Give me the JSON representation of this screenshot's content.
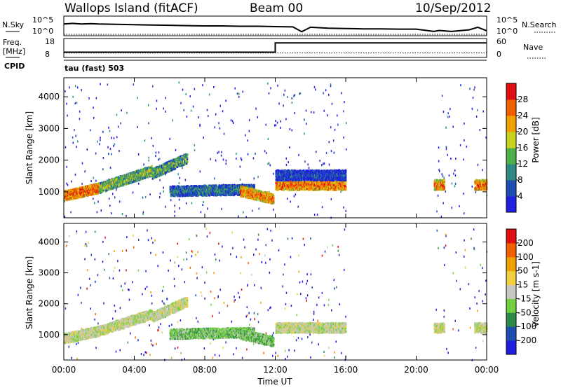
{
  "header": {
    "station": "Wallops Island (fitACF)",
    "beam": "Beam 00",
    "date": "10/Sep/2012"
  },
  "chart_data": [
    {
      "type": "line",
      "panel": "noise",
      "left_label": "N.Sky",
      "left_ticks": [
        "10^5",
        "10^0"
      ],
      "right_label": "N.Search",
      "right_ticks": [
        "10^5",
        "10^0"
      ],
      "scale": "log",
      "x": [
        0,
        0.5,
        1,
        1.5,
        2,
        3,
        4,
        5,
        6,
        7,
        8,
        9,
        10,
        11,
        12,
        13,
        13.5,
        14,
        15,
        16,
        17,
        18,
        19,
        20,
        21,
        21.3,
        22,
        23,
        23.5,
        24
      ],
      "series": [
        {
          "values": [
            3.2,
            3.4,
            3.2,
            3.3,
            3.2,
            3.1,
            3.0,
            2.9,
            2.8,
            2.7,
            2.6,
            2.6,
            2.5,
            2.5,
            2.4,
            2.3,
            0.8,
            2.2,
            1.9,
            1.8,
            1.7,
            1.7,
            1.6,
            1.6,
            0.9,
            1.2,
            0.9,
            1.4,
            2.2,
            1.1
          ]
        },
        {
          "values": [
            0,
            0,
            0,
            0,
            0,
            0,
            0,
            0,
            0,
            0,
            0,
            0,
            0,
            0,
            0,
            0,
            0,
            0,
            0,
            0,
            0,
            0,
            0,
            0,
            0,
            0,
            0,
            0,
            0,
            0
          ]
        }
      ]
    },
    {
      "type": "line",
      "panel": "frequency",
      "left_label": "Freq.",
      "left_unit": "[MHz]",
      "left_ticks": [
        "18",
        "8"
      ],
      "right_label": "Nave",
      "right_ticks": [
        "60",
        "0"
      ],
      "x": [
        0,
        12,
        12,
        24
      ],
      "series": [
        {
          "values": [
            10.5,
            10.5,
            16.5,
            16.5
          ]
        },
        {
          "values": [
            10,
            10,
            10,
            10
          ]
        }
      ]
    },
    {
      "type": "label",
      "panel": "cpid",
      "label": "CPID",
      "program": "tau (fast) 503"
    },
    {
      "type": "heatmap",
      "panel": "power",
      "ylabel": "Slant Range [km]",
      "yticks": [
        1000,
        2000,
        3000,
        4000
      ],
      "ylim": [
        180,
        4600
      ],
      "colorbar_label": "Power [dB]",
      "colorbar_ticks": [
        "28",
        "24",
        "20",
        "16",
        "12",
        "8",
        "4"
      ],
      "colors": [
        "#2020e0",
        "#1e4fb0",
        "#2f8a86",
        "#4fb04a",
        "#c8d020",
        "#f0a000",
        "#f06000",
        "#e01010"
      ],
      "clim": [
        0,
        32
      ],
      "bands": [
        {
          "start": 0.0,
          "end": 2.0,
          "r0": 900,
          "r1": 1150,
          "v": 27
        },
        {
          "start": 2.0,
          "end": 5.0,
          "r0": 1150,
          "r1": 1700,
          "v": 16
        },
        {
          "start": 5.0,
          "end": 7.0,
          "r0": 1600,
          "r1": 2100,
          "v": 14
        },
        {
          "start": 6.0,
          "end": 10.8,
          "r0": 1050,
          "r1": 1100,
          "v": 10
        },
        {
          "start": 10.0,
          "end": 11.9,
          "r0": 1050,
          "r1": 800,
          "v": 25
        },
        {
          "start": 12.0,
          "end": 16.0,
          "r0": 1250,
          "r1": 1250,
          "v": 26
        },
        {
          "start": 12.0,
          "end": 16.0,
          "r0": 1550,
          "r1": 1550,
          "v": 6
        },
        {
          "start": 21.0,
          "end": 21.6,
          "r0": 1250,
          "r1": 1250,
          "v": 25
        },
        {
          "start": 23.3,
          "end": 24.0,
          "r0": 1250,
          "r1": 1250,
          "v": 25
        }
      ]
    },
    {
      "type": "heatmap",
      "panel": "velocity",
      "ylabel": "Slant Range [km]",
      "yticks": [
        1000,
        2000,
        3000,
        4000
      ],
      "ylim": [
        180,
        4600
      ],
      "colorbar_label": "Velocity [m s-1]",
      "colorbar_ticks": [
        "200",
        "100",
        "50",
        "15",
        "-15",
        "-50",
        "-100",
        "-200"
      ],
      "colors": [
        "#1e1ee0",
        "#1e4fb0",
        "#2f8a4a",
        "#70d040",
        "#c8c8c0",
        "#f0d040",
        "#f0a000",
        "#f06000",
        "#e01010"
      ],
      "bands": [
        {
          "start": 0.0,
          "end": 2.0,
          "r0": 900,
          "r1": 1150,
          "v": 4
        },
        {
          "start": 2.0,
          "end": 5.0,
          "r0": 1150,
          "r1": 1700,
          "v": 4
        },
        {
          "start": 5.0,
          "end": 7.0,
          "r0": 1600,
          "r1": 2100,
          "v": 4
        },
        {
          "start": 6.0,
          "end": 10.8,
          "r0": 1050,
          "r1": 1100,
          "v": 3
        },
        {
          "start": 10.0,
          "end": 11.9,
          "r0": 1050,
          "r1": 800,
          "v": 3
        },
        {
          "start": 12.0,
          "end": 16.0,
          "r0": 1250,
          "r1": 1250,
          "v": 4
        },
        {
          "start": 21.0,
          "end": 21.6,
          "r0": 1250,
          "r1": 1250,
          "v": 4
        },
        {
          "start": 23.3,
          "end": 24.0,
          "r0": 1250,
          "r1": 1250,
          "v": 4
        }
      ]
    }
  ],
  "xaxis": {
    "label": "Time UT",
    "ticks": [
      "00:00",
      "04:00",
      "08:00",
      "12:00",
      "16:00",
      "20:00",
      "00:00"
    ],
    "xlim": [
      0,
      24
    ]
  }
}
